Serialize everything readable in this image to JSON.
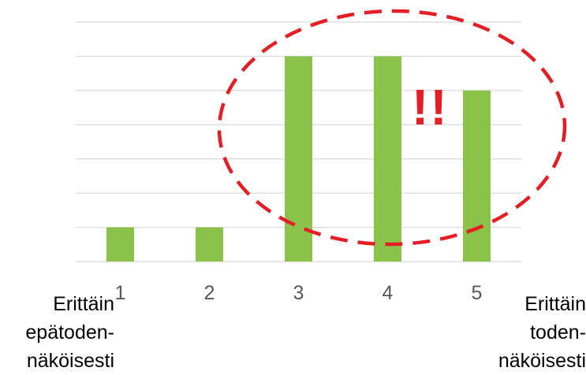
{
  "chart_data": {
    "type": "bar",
    "categories": [
      "1",
      "2",
      "3",
      "4",
      "5"
    ],
    "values": [
      1,
      1,
      6,
      6,
      5
    ],
    "ylim": [
      0,
      7
    ],
    "grid": true,
    "bar_color": "#8bc34a",
    "gridline_color": "#d9d9d9"
  },
  "left_label": {
    "line1": "Erittäin",
    "line2": "epätoden-",
    "line3": "näköisesti"
  },
  "right_label": {
    "line1": "Erittäin",
    "line2": "toden-",
    "line3": "näköisesti"
  },
  "annotation": {
    "text": "!!",
    "color": "#e41e25",
    "ellipse_style": "dashed"
  }
}
